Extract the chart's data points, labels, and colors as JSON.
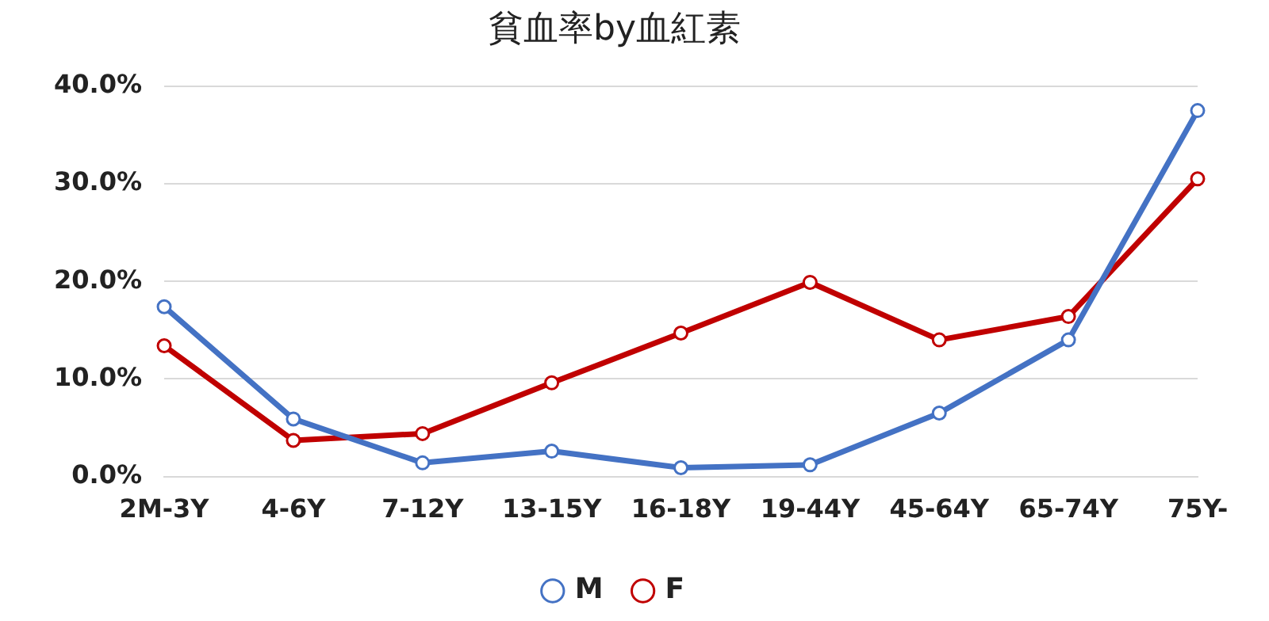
{
  "chart_data": {
    "type": "line",
    "title": "貧血率by血紅素",
    "categories": [
      "2M-3Y",
      "4-6Y",
      "7-12Y",
      "13-15Y",
      "16-18Y",
      "19-44Y",
      "45-64Y",
      "65-74Y",
      "75Y-"
    ],
    "series": [
      {
        "name": "M",
        "color": "#4472c4",
        "values": [
          17.4,
          5.9,
          1.4,
          2.6,
          0.9,
          1.2,
          6.5,
          14.0,
          37.5
        ]
      },
      {
        "name": "F",
        "color": "#c00000",
        "values": [
          13.4,
          3.7,
          4.4,
          9.6,
          14.7,
          19.9,
          14.0,
          16.4,
          30.5
        ]
      }
    ],
    "ylim": [
      0,
      40
    ],
    "yticks": [
      {
        "value": 0,
        "label": "0.0%"
      },
      {
        "value": 10,
        "label": "10.0%"
      },
      {
        "value": 20,
        "label": "20.0%"
      },
      {
        "value": 30,
        "label": "30.0%"
      },
      {
        "value": 40,
        "label": "40.0%"
      }
    ],
    "grid": "y",
    "legend": "bottom",
    "marker": "circle",
    "line_style": "solid"
  }
}
